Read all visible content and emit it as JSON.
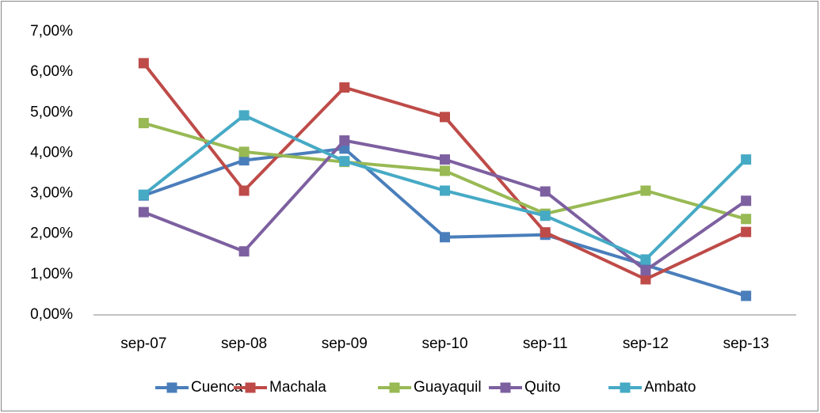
{
  "chart_data": {
    "type": "line",
    "categories": [
      "sep-07",
      "sep-08",
      "sep-09",
      "sep-10",
      "sep-11",
      "sep-12",
      "sep-13"
    ],
    "series": [
      {
        "name": "Cuenca",
        "color": "#4a7ebb",
        "values": [
          2.95,
          3.82,
          4.11,
          1.92,
          1.98,
          1.23,
          0.47
        ]
      },
      {
        "name": "Machala",
        "color": "#be4b48",
        "values": [
          6.22,
          3.07,
          5.62,
          4.89,
          2.04,
          0.88,
          2.05
        ]
      },
      {
        "name": "Guayaquil",
        "color": "#98b954",
        "values": [
          4.74,
          4.03,
          3.78,
          3.56,
          2.5,
          3.07,
          2.37
        ]
      },
      {
        "name": "Quito",
        "color": "#7d60a0",
        "values": [
          2.54,
          1.57,
          4.31,
          3.84,
          3.05,
          1.1,
          2.82
        ]
      },
      {
        "name": "Ambato",
        "color": "#46aac5",
        "values": [
          2.97,
          4.93,
          3.8,
          3.07,
          2.45,
          1.37,
          3.84
        ]
      }
    ],
    "ylim": [
      0,
      7
    ],
    "yticks": [
      {
        "value": 0,
        "label": "0,00%"
      },
      {
        "value": 1,
        "label": "1,00%"
      },
      {
        "value": 2,
        "label": "2,00%"
      },
      {
        "value": 3,
        "label": "3,00%"
      },
      {
        "value": 4,
        "label": "4,00%"
      },
      {
        "value": 5,
        "label": "5,00%"
      },
      {
        "value": 6,
        "label": "6,00%"
      },
      {
        "value": 7,
        "label": "7,00%"
      }
    ],
    "legend": "bottom"
  }
}
